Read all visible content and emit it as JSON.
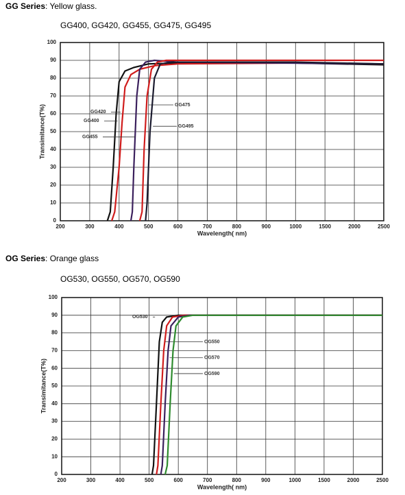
{
  "chart_data": [
    {
      "type": "line",
      "title": "GG Series",
      "subtitle": ": Yellow glass.",
      "caption": "GG400, GG420, GG455, GG475, GG495",
      "xlabel": "Wavelength( nm)",
      "ylabel": "Transimitance(T%)",
      "xlim": [
        200,
        2500
      ],
      "ylim": [
        0,
        100
      ],
      "xticks": [
        200,
        300,
        400,
        500,
        600,
        700,
        800,
        900,
        1000,
        1500,
        2000,
        2500
      ],
      "yticks": [
        0,
        10,
        20,
        30,
        40,
        50,
        60,
        70,
        80,
        90,
        100
      ],
      "grid": true,
      "series": [
        {
          "name": "GG400",
          "color": "#111111",
          "x": [
            360,
            370,
            380,
            390,
            400,
            420,
            450,
            500,
            600,
            1000,
            2500
          ],
          "values": [
            0,
            5,
            30,
            60,
            78,
            84,
            86,
            88,
            88.5,
            88.5,
            87.5
          ]
        },
        {
          "name": "GG420",
          "color": "#d01c1c",
          "x": [
            375,
            385,
            400,
            410,
            420,
            440,
            470,
            520,
            600,
            1000,
            2500
          ],
          "values": [
            0,
            5,
            30,
            55,
            75,
            82,
            85,
            87,
            88,
            88.5,
            88
          ]
        },
        {
          "name": "GG455",
          "color": "#3a1f5c",
          "x": [
            440,
            445,
            450,
            460,
            470,
            490,
            520,
            600,
            2500
          ],
          "values": [
            0,
            5,
            30,
            70,
            85,
            89,
            90,
            89,
            88
          ]
        },
        {
          "name": "GG475",
          "color": "#d01c1c",
          "x": [
            470,
            478,
            485,
            495,
            510,
            530,
            560,
            1000,
            2500
          ],
          "values": [
            0,
            5,
            40,
            70,
            85,
            89,
            90,
            90,
            90
          ]
        },
        {
          "name": "GG495",
          "color": "#1a1a2e",
          "x": [
            490,
            495,
            505,
            520,
            540,
            580,
            1000,
            2500
          ],
          "values": [
            0,
            10,
            50,
            80,
            88,
            89,
            89,
            88
          ]
        }
      ]
    },
    {
      "type": "line",
      "title": "OG Series",
      "subtitle": ": Orange glass",
      "caption": "OG530, OG550, OG570, OG590",
      "xlabel": "Wavelength( nm)",
      "ylabel": "Transimitance(T%)",
      "xlim": [
        200,
        2500
      ],
      "ylim": [
        0,
        100
      ],
      "xticks": [
        200,
        300,
        400,
        500,
        600,
        700,
        800,
        900,
        1000,
        1500,
        2000,
        2500
      ],
      "yticks": [
        0,
        10,
        20,
        30,
        40,
        50,
        60,
        70,
        80,
        90,
        100
      ],
      "grid": true,
      "series": [
        {
          "name": "OG530",
          "color": "#111111",
          "x": [
            510,
            515,
            525,
            535,
            545,
            560,
            600,
            2500
          ],
          "values": [
            0,
            5,
            40,
            75,
            86,
            89,
            90,
            90
          ]
        },
        {
          "name": "OG550",
          "color": "#d01c1c",
          "x": [
            525,
            530,
            540,
            550,
            560,
            580,
            620,
            2500
          ],
          "values": [
            0,
            5,
            40,
            70,
            84,
            89,
            90,
            90
          ]
        },
        {
          "name": "OG570",
          "color": "#3a1f5c",
          "x": [
            540,
            545,
            555,
            565,
            575,
            600,
            640,
            2500
          ],
          "values": [
            0,
            5,
            40,
            70,
            84,
            89,
            90,
            90
          ]
        },
        {
          "name": "OG590",
          "color": "#2e8b2e",
          "x": [
            555,
            562,
            572,
            582,
            592,
            615,
            650,
            2500
          ],
          "values": [
            0,
            5,
            40,
            70,
            84,
            89,
            90,
            90
          ]
        }
      ]
    }
  ]
}
